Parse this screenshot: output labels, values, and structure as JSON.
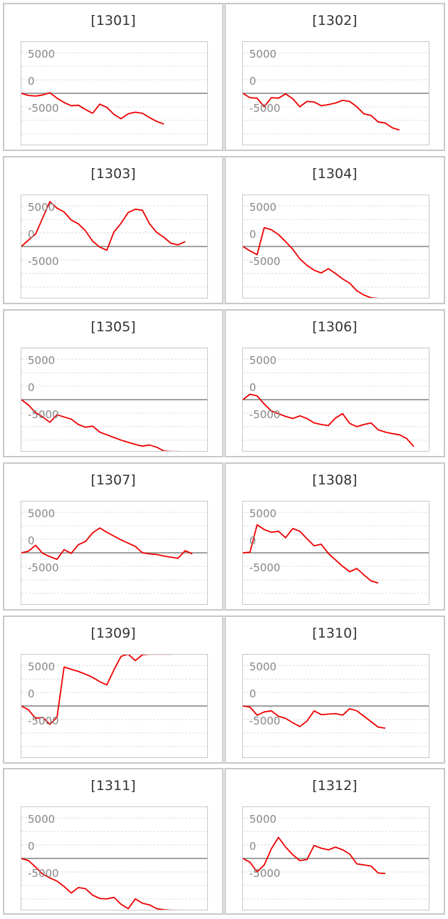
{
  "colors": {
    "line": "#ee0000",
    "zero_line": "#808080",
    "grid": "#dddddd",
    "border": "#c8c8c8"
  },
  "y_ticks": [
    {
      "label": "5000",
      "value": 5000
    },
    {
      "label": "0",
      "value": 0
    },
    {
      "label": "-5000",
      "value": -5000
    }
  ],
  "chart_data": [
    {
      "type": "line",
      "title": "[1301]",
      "ylim": [
        -9500,
        9500
      ],
      "grid": true,
      "values": [
        0,
        -400,
        -500,
        -300,
        100,
        -900,
        -1700,
        -2300,
        -2200,
        -3000,
        -3700,
        -2000,
        -2600,
        -3900,
        -4700,
        -3800,
        -3500,
        -3700,
        -4500,
        -5200,
        -5700
      ]
    },
    {
      "type": "line",
      "title": "[1302]",
      "ylim": [
        -9500,
        9500
      ],
      "grid": true,
      "values": [
        0,
        -800,
        -900,
        -2500,
        -800,
        -900,
        -100,
        -1000,
        -2500,
        -1500,
        -1600,
        -2300,
        -2100,
        -1800,
        -1300,
        -1500,
        -2500,
        -3800,
        -4100,
        -5300,
        -5500,
        -6400,
        -6800
      ]
    },
    {
      "type": "line",
      "title": "[1303]",
      "ylim": [
        -9500,
        9500
      ],
      "grid": true,
      "values": [
        0,
        1200,
        2300,
        5300,
        8300,
        7100,
        6400,
        4900,
        4200,
        2900,
        1000,
        -100,
        -700,
        2700,
        4300,
        6300,
        6900,
        6700,
        4200,
        2600,
        1700,
        600,
        300,
        900
      ]
    },
    {
      "type": "line",
      "title": "[1304]",
      "ylim": [
        -9500,
        9500
      ],
      "grid": true,
      "values": [
        0,
        -800,
        -1500,
        3500,
        3100,
        2200,
        900,
        -500,
        -2300,
        -3500,
        -4400,
        -4900,
        -4100,
        -5000,
        -6000,
        -6800,
        -8200,
        -9000,
        -9500,
        -9600
      ]
    },
    {
      "type": "line",
      "title": "[1305]",
      "ylim": [
        -9500,
        9500
      ],
      "grid": true,
      "values": [
        0,
        -1000,
        -2400,
        -3200,
        -4200,
        -2800,
        -3200,
        -3600,
        -4600,
        -5100,
        -4900,
        -6000,
        -6500,
        -7000,
        -7500,
        -7900,
        -8300,
        -8600,
        -8400,
        -8800,
        -9500,
        -9600,
        -9600
      ]
    },
    {
      "type": "line",
      "title": "[1306]",
      "ylim": [
        -9500,
        9500
      ],
      "grid": true,
      "values": [
        0,
        1000,
        700,
        -800,
        -2100,
        -2600,
        -3100,
        -3500,
        -3000,
        -3500,
        -4300,
        -4600,
        -4800,
        -3400,
        -2600,
        -4400,
        -5000,
        -4600,
        -4300,
        -5600,
        -6000,
        -6300,
        -6500,
        -7200,
        -8700
      ]
    },
    {
      "type": "line",
      "title": "[1307]",
      "ylim": [
        -9500,
        9500
      ],
      "grid": true,
      "values": [
        0,
        300,
        1400,
        -100,
        -700,
        -1200,
        600,
        -100,
        1500,
        2100,
        3700,
        4600,
        3800,
        3100,
        2400,
        1800,
        1200,
        0,
        -200,
        -300,
        -600,
        -800,
        -1000,
        400,
        -200
      ]
    },
    {
      "type": "line",
      "title": "[1308]",
      "ylim": [
        -9500,
        9500
      ],
      "grid": true,
      "values": [
        0,
        100,
        5200,
        4300,
        3800,
        4000,
        2800,
        4500,
        4000,
        2600,
        1300,
        1600,
        -100,
        -1300,
        -2500,
        -3500,
        -2900,
        -4100,
        -5200,
        -5600
      ]
    },
    {
      "type": "line",
      "title": "[1309]",
      "ylim": [
        -9500,
        9500
      ],
      "grid": true,
      "values": [
        0,
        -700,
        -2300,
        -2100,
        -3400,
        -2100,
        7200,
        6800,
        6400,
        5900,
        5300,
        4500,
        3900,
        6700,
        9200,
        9600,
        8400,
        9500,
        9600,
        9600,
        9600,
        9600
      ]
    },
    {
      "type": "line",
      "title": "[1310]",
      "ylim": [
        -9500,
        9500
      ],
      "grid": true,
      "values": [
        0,
        -200,
        -1700,
        -1100,
        -900,
        -1900,
        -2300,
        -3100,
        -3800,
        -2800,
        -900,
        -1600,
        -1500,
        -1400,
        -1700,
        -500,
        -900,
        -1900,
        -2900,
        -3900,
        -4100
      ]
    },
    {
      "type": "line",
      "title": "[1311]",
      "ylim": [
        -9500,
        9500
      ],
      "grid": true,
      "values": [
        0,
        -400,
        -1600,
        -2900,
        -3600,
        -4200,
        -5200,
        -6400,
        -5400,
        -5600,
        -6800,
        -7400,
        -7500,
        -7200,
        -8500,
        -9300,
        -7500,
        -8300,
        -8600,
        -9300,
        -9500,
        -9600,
        -9600
      ]
    },
    {
      "type": "line",
      "title": "[1312]",
      "ylim": [
        -9500,
        9500
      ],
      "grid": true,
      "values": [
        0,
        -700,
        -2500,
        -1200,
        1800,
        3900,
        2100,
        700,
        -400,
        -200,
        2400,
        1900,
        1600,
        2100,
        1600,
        800,
        -1000,
        -1200,
        -1400,
        -2700,
        -2800
      ]
    }
  ]
}
